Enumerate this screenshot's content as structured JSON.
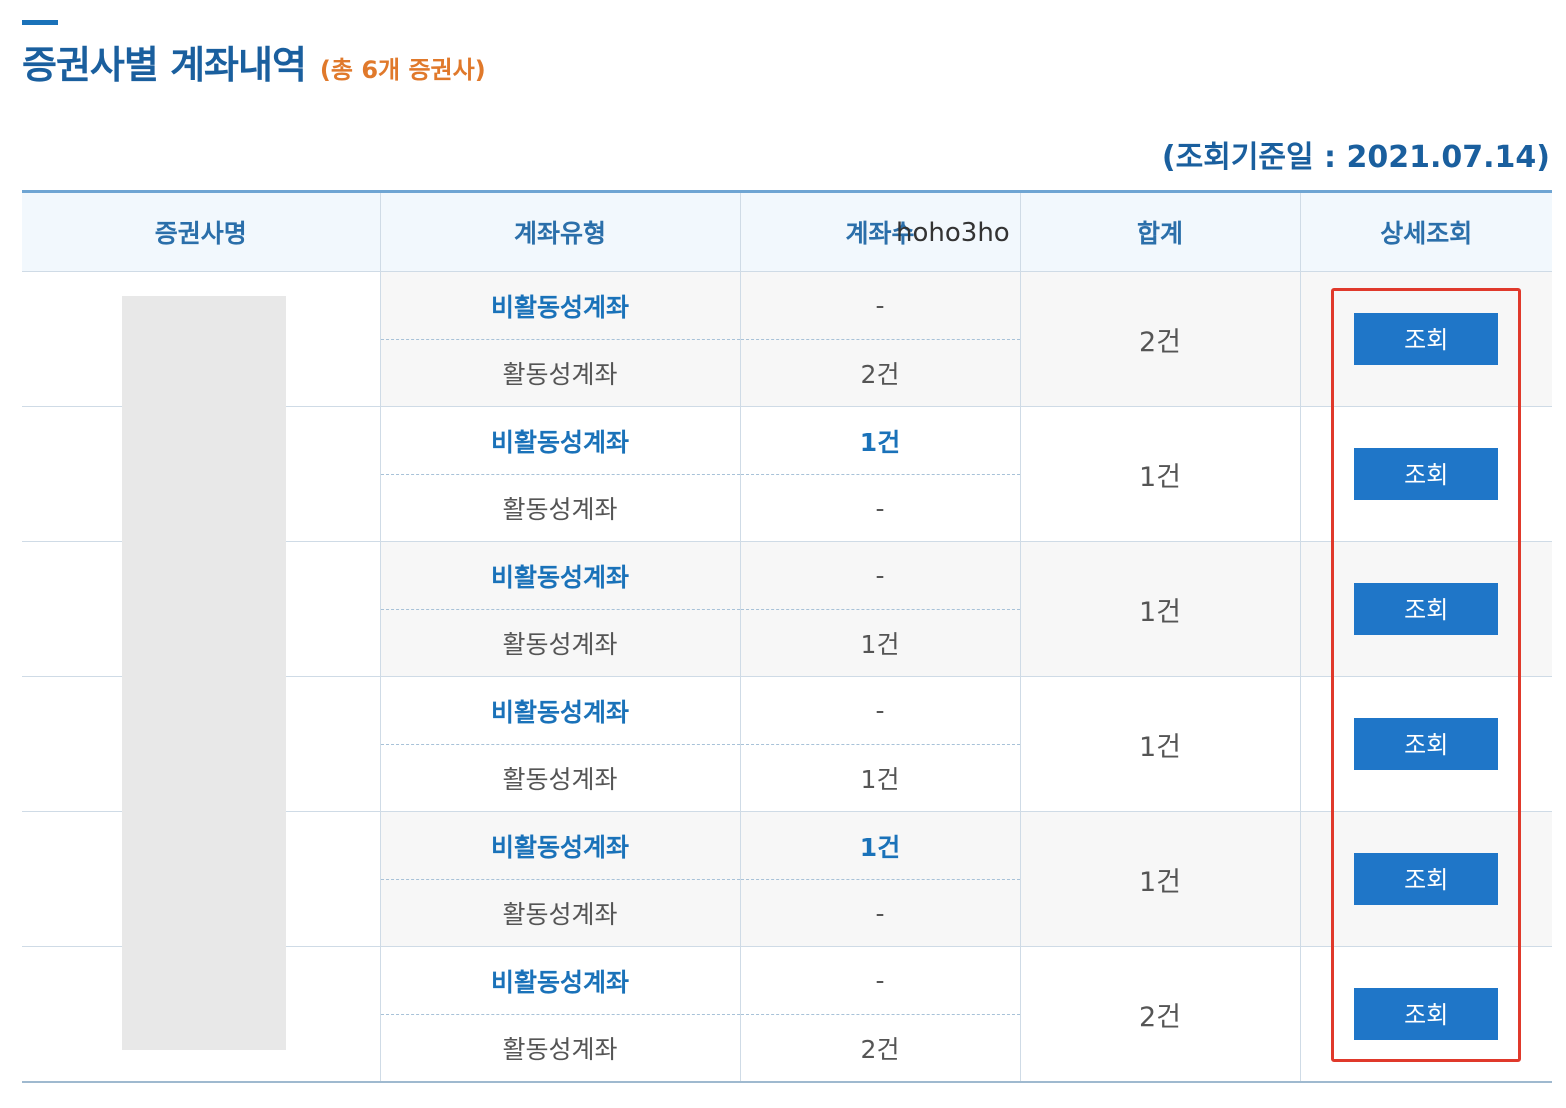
{
  "header": {
    "title": "증권사별 계좌내역",
    "count_label": "(총 6개 증권사)",
    "reference_date": "(조회기준일 : 2021.07.14)"
  },
  "table": {
    "columns": [
      "증권사명",
      "계좌유형",
      "계좌수",
      "합계",
      "상세조회"
    ],
    "inactive_label": "비활동성계좌",
    "active_label": "활동성계좌",
    "button_label": "조회",
    "rows": [
      {
        "inactive_count": "-",
        "active_count": "2건",
        "total": "2건"
      },
      {
        "inactive_count": "1건",
        "active_count": "-",
        "total": "1건"
      },
      {
        "inactive_count": "-",
        "active_count": "1건",
        "total": "1건"
      },
      {
        "inactive_count": "-",
        "active_count": "1건",
        "total": "1건"
      },
      {
        "inactive_count": "1건",
        "active_count": "-",
        "total": "1건"
      },
      {
        "inactive_count": "-",
        "active_count": "2건",
        "total": "2건"
      }
    ]
  },
  "watermark": "hoho3ho",
  "colors": {
    "accent_blue": "#1a72b9",
    "button_blue": "#1f76c8",
    "count_orange": "#e0792b",
    "highlight_red": "#e0392b"
  }
}
